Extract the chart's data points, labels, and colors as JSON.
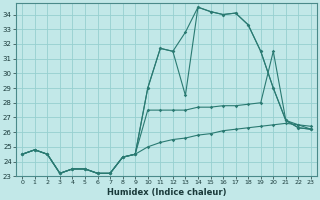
{
  "xlabel": "Humidex (Indice chaleur)",
  "bg_color": "#c2e8e8",
  "line_color": "#2a7a72",
  "grid_color": "#96d0d0",
  "xlim": [
    -0.5,
    23.5
  ],
  "ylim": [
    23,
    34.8
  ],
  "xticks": [
    0,
    1,
    2,
    3,
    4,
    5,
    6,
    7,
    8,
    9,
    10,
    11,
    12,
    13,
    14,
    15,
    16,
    17,
    18,
    19,
    20,
    21,
    22,
    23
  ],
  "yticks": [
    23,
    24,
    25,
    26,
    27,
    28,
    29,
    30,
    31,
    32,
    33,
    34
  ],
  "series": [
    {
      "x": [
        0,
        1,
        2,
        3,
        4,
        5,
        6,
        7,
        8,
        9,
        10,
        11,
        12,
        13,
        14,
        15,
        16,
        17,
        18,
        19,
        20,
        21,
        22,
        23
      ],
      "y": [
        24.5,
        24.8,
        24.5,
        23.2,
        23.5,
        23.5,
        23.2,
        23.2,
        24.3,
        24.5,
        29.0,
        31.7,
        31.5,
        32.8,
        34.5,
        34.2,
        34.0,
        34.1,
        33.3,
        31.5,
        29.0,
        26.8,
        26.3,
        26.2
      ]
    },
    {
      "x": [
        0,
        1,
        2,
        3,
        4,
        5,
        6,
        7,
        8,
        9,
        10,
        11,
        12,
        13,
        14,
        15,
        16,
        17,
        18,
        19,
        20,
        21,
        22,
        23
      ],
      "y": [
        24.5,
        24.8,
        24.5,
        23.2,
        23.5,
        23.5,
        23.2,
        23.2,
        24.3,
        24.5,
        29.0,
        31.7,
        31.5,
        28.5,
        34.5,
        34.2,
        34.0,
        34.1,
        33.3,
        31.5,
        29.0,
        26.8,
        26.3,
        26.2
      ]
    },
    {
      "x": [
        0,
        1,
        2,
        3,
        4,
        5,
        6,
        7,
        8,
        9,
        10,
        11,
        12,
        13,
        14,
        15,
        16,
        17,
        18,
        19,
        20,
        21,
        22,
        23
      ],
      "y": [
        24.5,
        24.8,
        24.5,
        23.2,
        23.5,
        23.5,
        23.2,
        23.2,
        24.3,
        24.5,
        27.5,
        27.5,
        27.5,
        27.5,
        27.7,
        27.7,
        27.8,
        27.8,
        27.9,
        28.0,
        31.5,
        26.8,
        26.5,
        26.2
      ]
    },
    {
      "x": [
        0,
        1,
        2,
        3,
        4,
        5,
        6,
        7,
        8,
        9,
        10,
        11,
        12,
        13,
        14,
        15,
        16,
        17,
        18,
        19,
        20,
        21,
        22,
        23
      ],
      "y": [
        24.5,
        24.8,
        24.5,
        23.2,
        23.5,
        23.5,
        23.2,
        23.2,
        24.3,
        24.5,
        25.0,
        25.3,
        25.5,
        25.6,
        25.8,
        25.9,
        26.1,
        26.2,
        26.3,
        26.4,
        26.5,
        26.6,
        26.5,
        26.4
      ]
    }
  ]
}
